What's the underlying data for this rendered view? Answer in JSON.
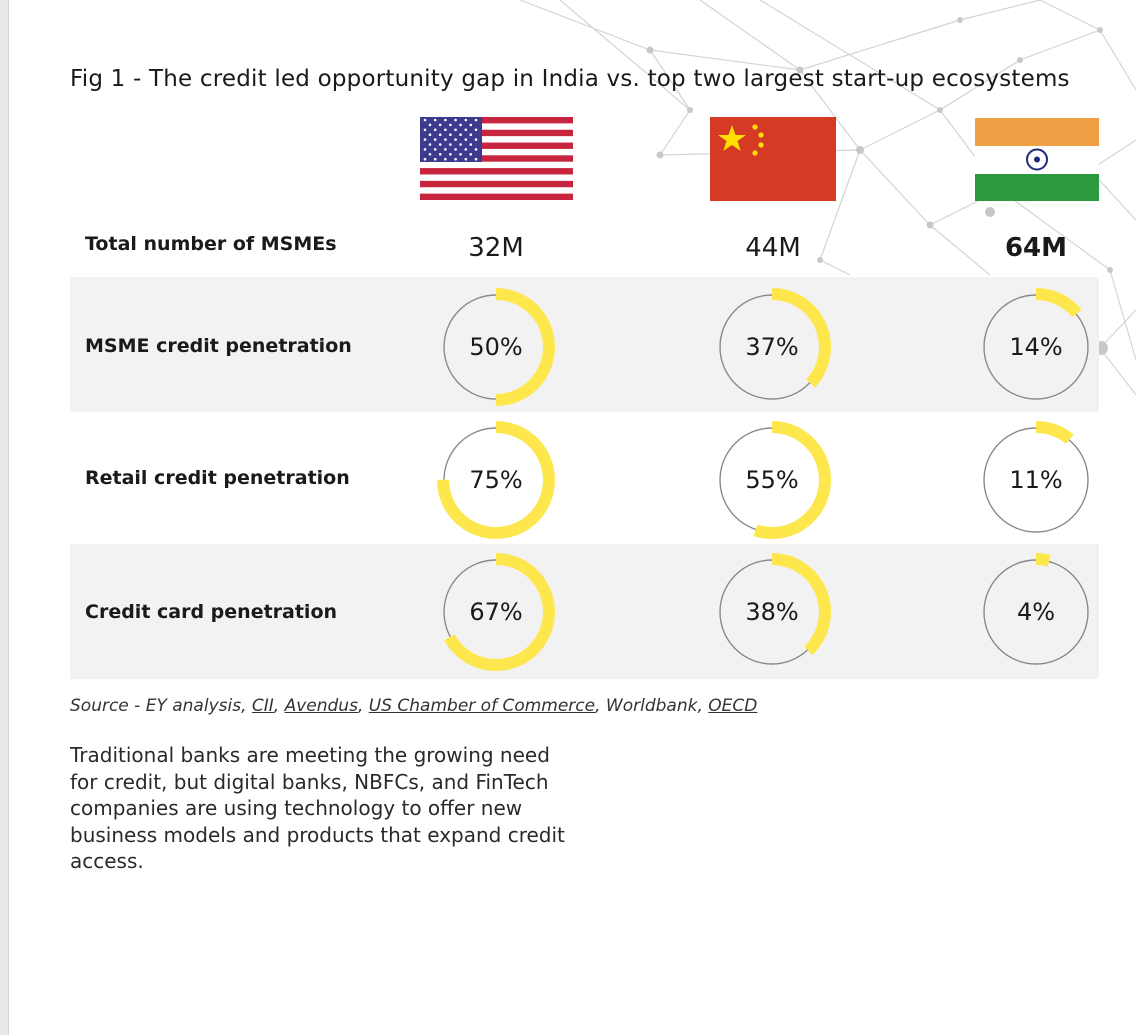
{
  "figure": {
    "title": "Fig 1 - The credit led opportunity gap in India vs. top two largest start-up ecosystems"
  },
  "countries": [
    {
      "flag_icon": "us-flag-icon"
    },
    {
      "flag_icon": "china-flag-icon"
    },
    {
      "flag_icon": "india-flag-icon"
    }
  ],
  "msme_total": {
    "label": "Total number of MSMEs",
    "values": [
      "32M",
      "44M",
      "64M"
    ]
  },
  "chart_data": {
    "type": "donut-grid",
    "title": "Fig 1 - The credit led opportunity gap in India vs. top two largest start-up ecosystems",
    "rows": [
      {
        "label": "MSME credit penetration",
        "values": [
          50,
          37,
          14
        ],
        "display": [
          "50%",
          "37%",
          "14%"
        ]
      },
      {
        "label": "Retail credit penetration",
        "values": [
          75,
          55,
          11
        ],
        "display": [
          "75%",
          "55%",
          "11%"
        ]
      },
      {
        "label": "Credit card penetration",
        "values": [
          67,
          38,
          4
        ],
        "display": [
          "67%",
          "38%",
          "4%"
        ]
      }
    ],
    "unit": "%",
    "max": 100,
    "fill_color": "#fde74c",
    "track_color": "#8a8a8a"
  },
  "source": {
    "prefix": "Source - EY analysis, ",
    "parts": [
      "CII",
      ", ",
      "Avendus",
      ", ",
      "US Chamber of Commerce",
      ", Worldbank, ",
      "OECD"
    ]
  },
  "paragraph": "Traditional banks are meeting the growing need for credit, but digital banks, NBFCs, and FinTech companies are using technology to offer new business models and products that expand credit access."
}
